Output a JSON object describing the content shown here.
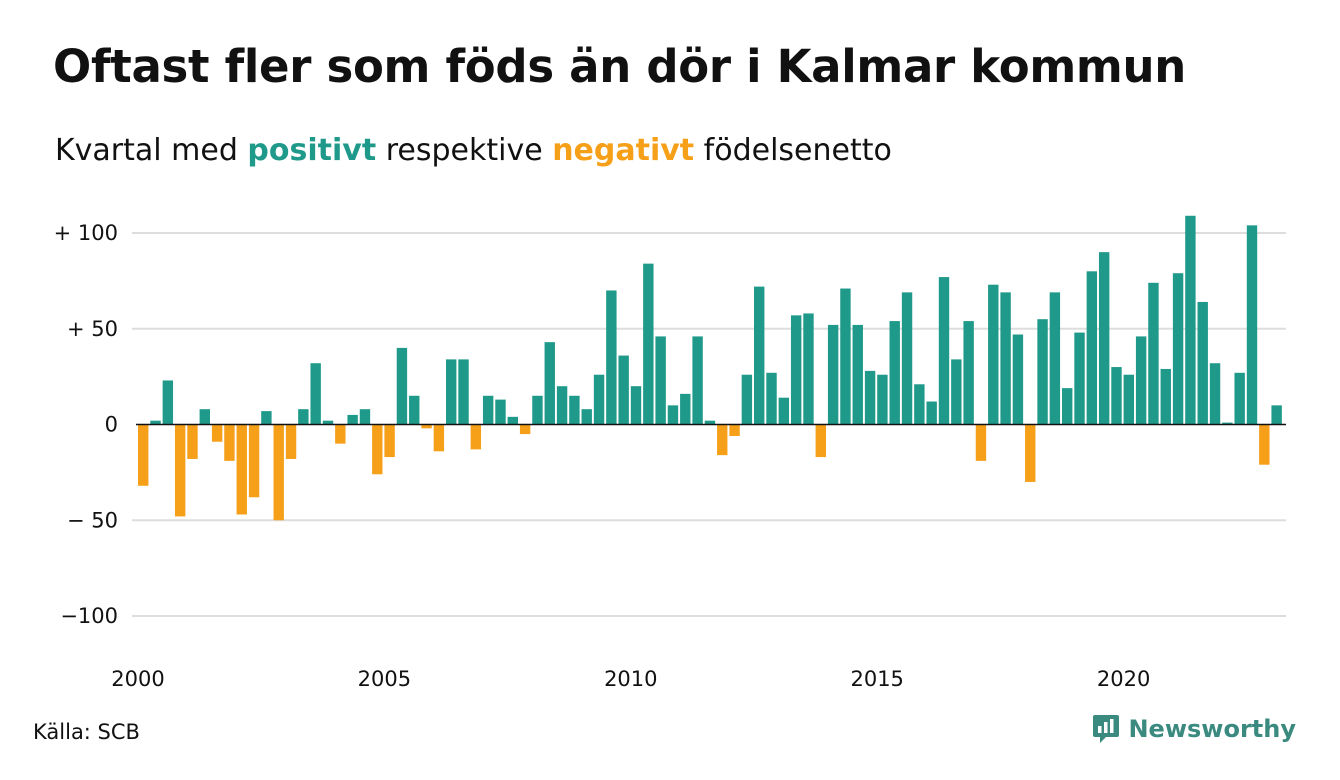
{
  "title": "Oftast fler som föds än dör i Kalmar kommun",
  "subtitle": {
    "prefix": "Kvartal med ",
    "positive_word": "positivt",
    "middle": " respektive ",
    "negative_word": "negativt",
    "suffix": " födelsenetto"
  },
  "source": "Källa: SCB",
  "brand": "Newsworthy",
  "colors": {
    "positive": "#1f9a8a",
    "negative": "#f6a01a",
    "grid": "#dddddd",
    "axis_text": "#111111",
    "brand": "#3a8a80"
  },
  "chart_data": {
    "type": "bar",
    "title": "Oftast fler som föds än dör i Kalmar kommun",
    "subtitle": "Kvartal med positivt respektive negativt födelsenetto",
    "x_start": 2000,
    "periods_per_year": 4,
    "x_ticks": [
      "2000",
      "2005",
      "2010",
      "2015",
      "2020"
    ],
    "y_ticks": [
      {
        "value": 100,
        "label": "+ 100"
      },
      {
        "value": 50,
        "label": "+  50"
      },
      {
        "value": 0,
        "label": "0"
      },
      {
        "value": -50,
        "label": "− 50"
      },
      {
        "value": -100,
        "label": "−100"
      }
    ],
    "ylim": [
      -100,
      100
    ],
    "grid": true,
    "values": [
      -32,
      2,
      23,
      -48,
      -18,
      8,
      -9,
      -19,
      -47,
      -38,
      7,
      -50,
      -18,
      8,
      32,
      2,
      -10,
      5,
      8,
      -26,
      -17,
      40,
      15,
      -2,
      -14,
      34,
      34,
      -13,
      15,
      13,
      4,
      -5,
      15,
      43,
      20,
      15,
      8,
      26,
      70,
      36,
      20,
      84,
      46,
      10,
      16,
      46,
      2,
      -16,
      -6,
      26,
      72,
      27,
      14,
      57,
      58,
      -17,
      52,
      71,
      52,
      28,
      26,
      54,
      69,
      21,
      12,
      77,
      34,
      54,
      -19,
      73,
      69,
      47,
      -30,
      55,
      69,
      19,
      48,
      80,
      90,
      30,
      26,
      46,
      74,
      29,
      79,
      109,
      64,
      32,
      1,
      27,
      104,
      -21,
      10
    ]
  }
}
